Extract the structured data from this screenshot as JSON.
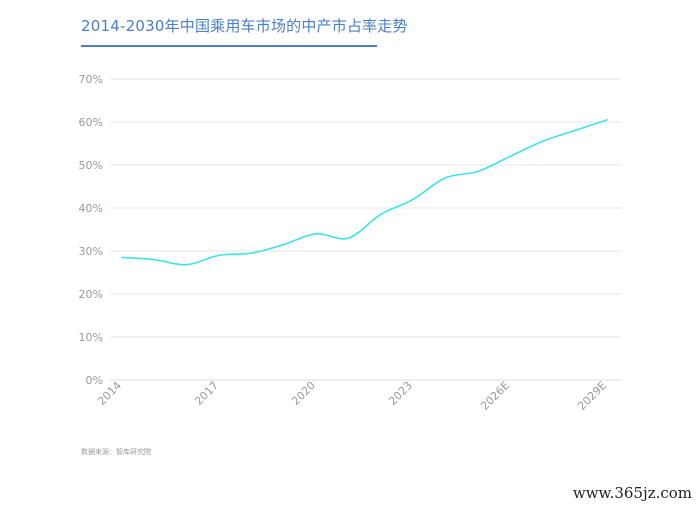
{
  "header": {
    "title": "2014-2030年中国乘用车市场的中产市占率走势"
  },
  "chart_data": {
    "type": "line",
    "title": "2014-2030年中国乘用车市场的中产市占率走势",
    "xlabel": "",
    "ylabel": "",
    "x_tick_labels": [
      "2014",
      "2017",
      "2020",
      "2023",
      "2026E",
      "2029E"
    ],
    "y_tick_labels": [
      "0%",
      "10%",
      "20%",
      "30%",
      "40%",
      "50%",
      "60%",
      "70%"
    ],
    "ylim": [
      0,
      70
    ],
    "grid": true,
    "series": [
      {
        "color": "#3fe3e6",
        "x": [
          "2014",
          "2015",
          "2016",
          "2017",
          "2018",
          "2019",
          "2020",
          "2021",
          "2022",
          "2023",
          "2024",
          "2025",
          "2026E",
          "2027E",
          "2028E",
          "2029E"
        ],
        "values": [
          28.5,
          28,
          26.8,
          29,
          29.5,
          31.5,
          34,
          33,
          38.5,
          42,
          47,
          48.5,
          52,
          55.5,
          58,
          60.5
        ]
      }
    ]
  },
  "footer": {
    "source": "数据来源：智库研究院",
    "watermark": "www.365jz.com"
  },
  "colors": {
    "title": "#4a7fc9",
    "line": "#3fe3e6",
    "grid": "#e6e6e6",
    "tick_text": "#9a9a9a"
  }
}
